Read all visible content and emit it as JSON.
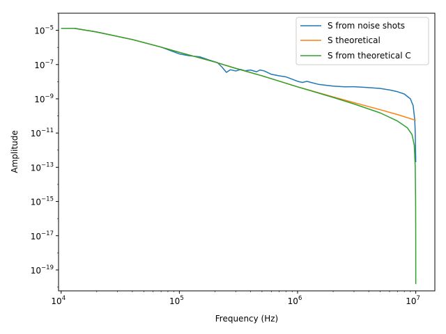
{
  "chart_data": {
    "type": "line",
    "xlabel": "Frequency (Hz)",
    "ylabel": "Amplitude",
    "xscale": "log",
    "yscale": "log",
    "xlim": [
      9500,
      14500000
    ],
    "ylim": [
      6e-21,
      0.0001
    ],
    "grid": false,
    "legend_position": "top-right",
    "x_ticks": [
      {
        "value": 10000,
        "base": "10",
        "exp": "4"
      },
      {
        "value": 100000,
        "base": "10",
        "exp": "5"
      },
      {
        "value": 1000000,
        "base": "10",
        "exp": "6"
      },
      {
        "value": 10000000,
        "base": "10",
        "exp": "7"
      }
    ],
    "y_ticks": [
      {
        "value": 1e-05,
        "base": "10",
        "exp": "−5"
      },
      {
        "value": 1e-07,
        "base": "10",
        "exp": "−7"
      },
      {
        "value": 1e-09,
        "base": "10",
        "exp": "−9"
      },
      {
        "value": 1e-11,
        "base": "10",
        "exp": "−11"
      },
      {
        "value": 1e-13,
        "base": "10",
        "exp": "−13"
      },
      {
        "value": 1e-15,
        "base": "10",
        "exp": "−15"
      },
      {
        "value": 1e-17,
        "base": "10",
        "exp": "−17"
      },
      {
        "value": 1e-19,
        "base": "10",
        "exp": "−19"
      }
    ],
    "series": [
      {
        "name": "S from noise shots",
        "color": "#1f77b4",
        "points": [
          [
            10000,
            1.3e-05
          ],
          [
            13000,
            1.3e-05
          ],
          [
            20000,
            8e-06
          ],
          [
            40000,
            2.9e-06
          ],
          [
            70000,
            1.05e-06
          ],
          [
            100000,
            4.2e-07
          ],
          [
            120000,
            3.3e-07
          ],
          [
            150000,
            2.8e-07
          ],
          [
            180000,
            1.8e-07
          ],
          [
            210000,
            1.3e-07
          ],
          [
            230000,
            7e-08
          ],
          [
            250000,
            3.5e-08
          ],
          [
            270000,
            5e-08
          ],
          [
            300000,
            4.2e-08
          ],
          [
            330000,
            5.2e-08
          ],
          [
            360000,
            4.3e-08
          ],
          [
            400000,
            4.8e-08
          ],
          [
            450000,
            3.8e-08
          ],
          [
            480000,
            4.8e-08
          ],
          [
            520000,
            4.3e-08
          ],
          [
            600000,
            2.7e-08
          ],
          [
            700000,
            2.2e-08
          ],
          [
            800000,
            1.9e-08
          ],
          [
            900000,
            1.4e-08
          ],
          [
            1000000,
            1.05e-08
          ],
          [
            1100000,
            9e-09
          ],
          [
            1200000,
            1.05e-08
          ],
          [
            1300000,
            9e-09
          ],
          [
            1500000,
            7e-09
          ],
          [
            2000000,
            5.5e-09
          ],
          [
            2500000,
            5e-09
          ],
          [
            3000000,
            5.1e-09
          ],
          [
            4000000,
            4.5e-09
          ],
          [
            5000000,
            4e-09
          ],
          [
            6000000,
            3.3e-09
          ],
          [
            7000000,
            2.6e-09
          ],
          [
            8000000,
            1.9e-09
          ],
          [
            9000000,
            1e-09
          ],
          [
            9500000,
            4e-10
          ],
          [
            9800000,
            6e-11
          ],
          [
            9900000,
            1e-11
          ],
          [
            9960000,
            1e-12
          ],
          [
            10000000,
            2e-13
          ]
        ]
      },
      {
        "name": "S theoretical",
        "color": "#ff7f0e",
        "points": [
          [
            10000,
            1.3e-05
          ],
          [
            13000,
            1.3e-05
          ],
          [
            20000,
            8e-06
          ],
          [
            40000,
            2.9e-06
          ],
          [
            70000,
            1.05e-06
          ],
          [
            100000,
            5.2e-07
          ],
          [
            200000,
            1.4e-07
          ],
          [
            300000,
            6e-08
          ],
          [
            500000,
            2.2e-08
          ],
          [
            1000000,
            5e-09
          ],
          [
            2000000,
            1.3e-09
          ],
          [
            3000000,
            6e-10
          ],
          [
            5000000,
            2.3e-10
          ],
          [
            7000000,
            1.2e-10
          ],
          [
            10000000,
            5.5e-11
          ]
        ]
      },
      {
        "name": "S from theoretical C",
        "color": "#2ca02c",
        "points": [
          [
            10000,
            1.3e-05
          ],
          [
            13000,
            1.3e-05
          ],
          [
            20000,
            8e-06
          ],
          [
            40000,
            2.9e-06
          ],
          [
            70000,
            1.05e-06
          ],
          [
            100000,
            5.2e-07
          ],
          [
            200000,
            1.4e-07
          ],
          [
            300000,
            6e-08
          ],
          [
            500000,
            2.2e-08
          ],
          [
            1000000,
            5e-09
          ],
          [
            2000000,
            1.2e-09
          ],
          [
            3000000,
            5e-10
          ],
          [
            5000000,
            1.5e-10
          ],
          [
            7000000,
            5e-11
          ],
          [
            8500000,
            2e-11
          ],
          [
            9300000,
            8e-12
          ],
          [
            9700000,
            2e-12
          ],
          [
            9900000,
            1e-13
          ],
          [
            9970000,
            1e-15
          ],
          [
            9990000,
            1e-17
          ],
          [
            10000000,
            1.5e-20
          ]
        ]
      }
    ]
  }
}
